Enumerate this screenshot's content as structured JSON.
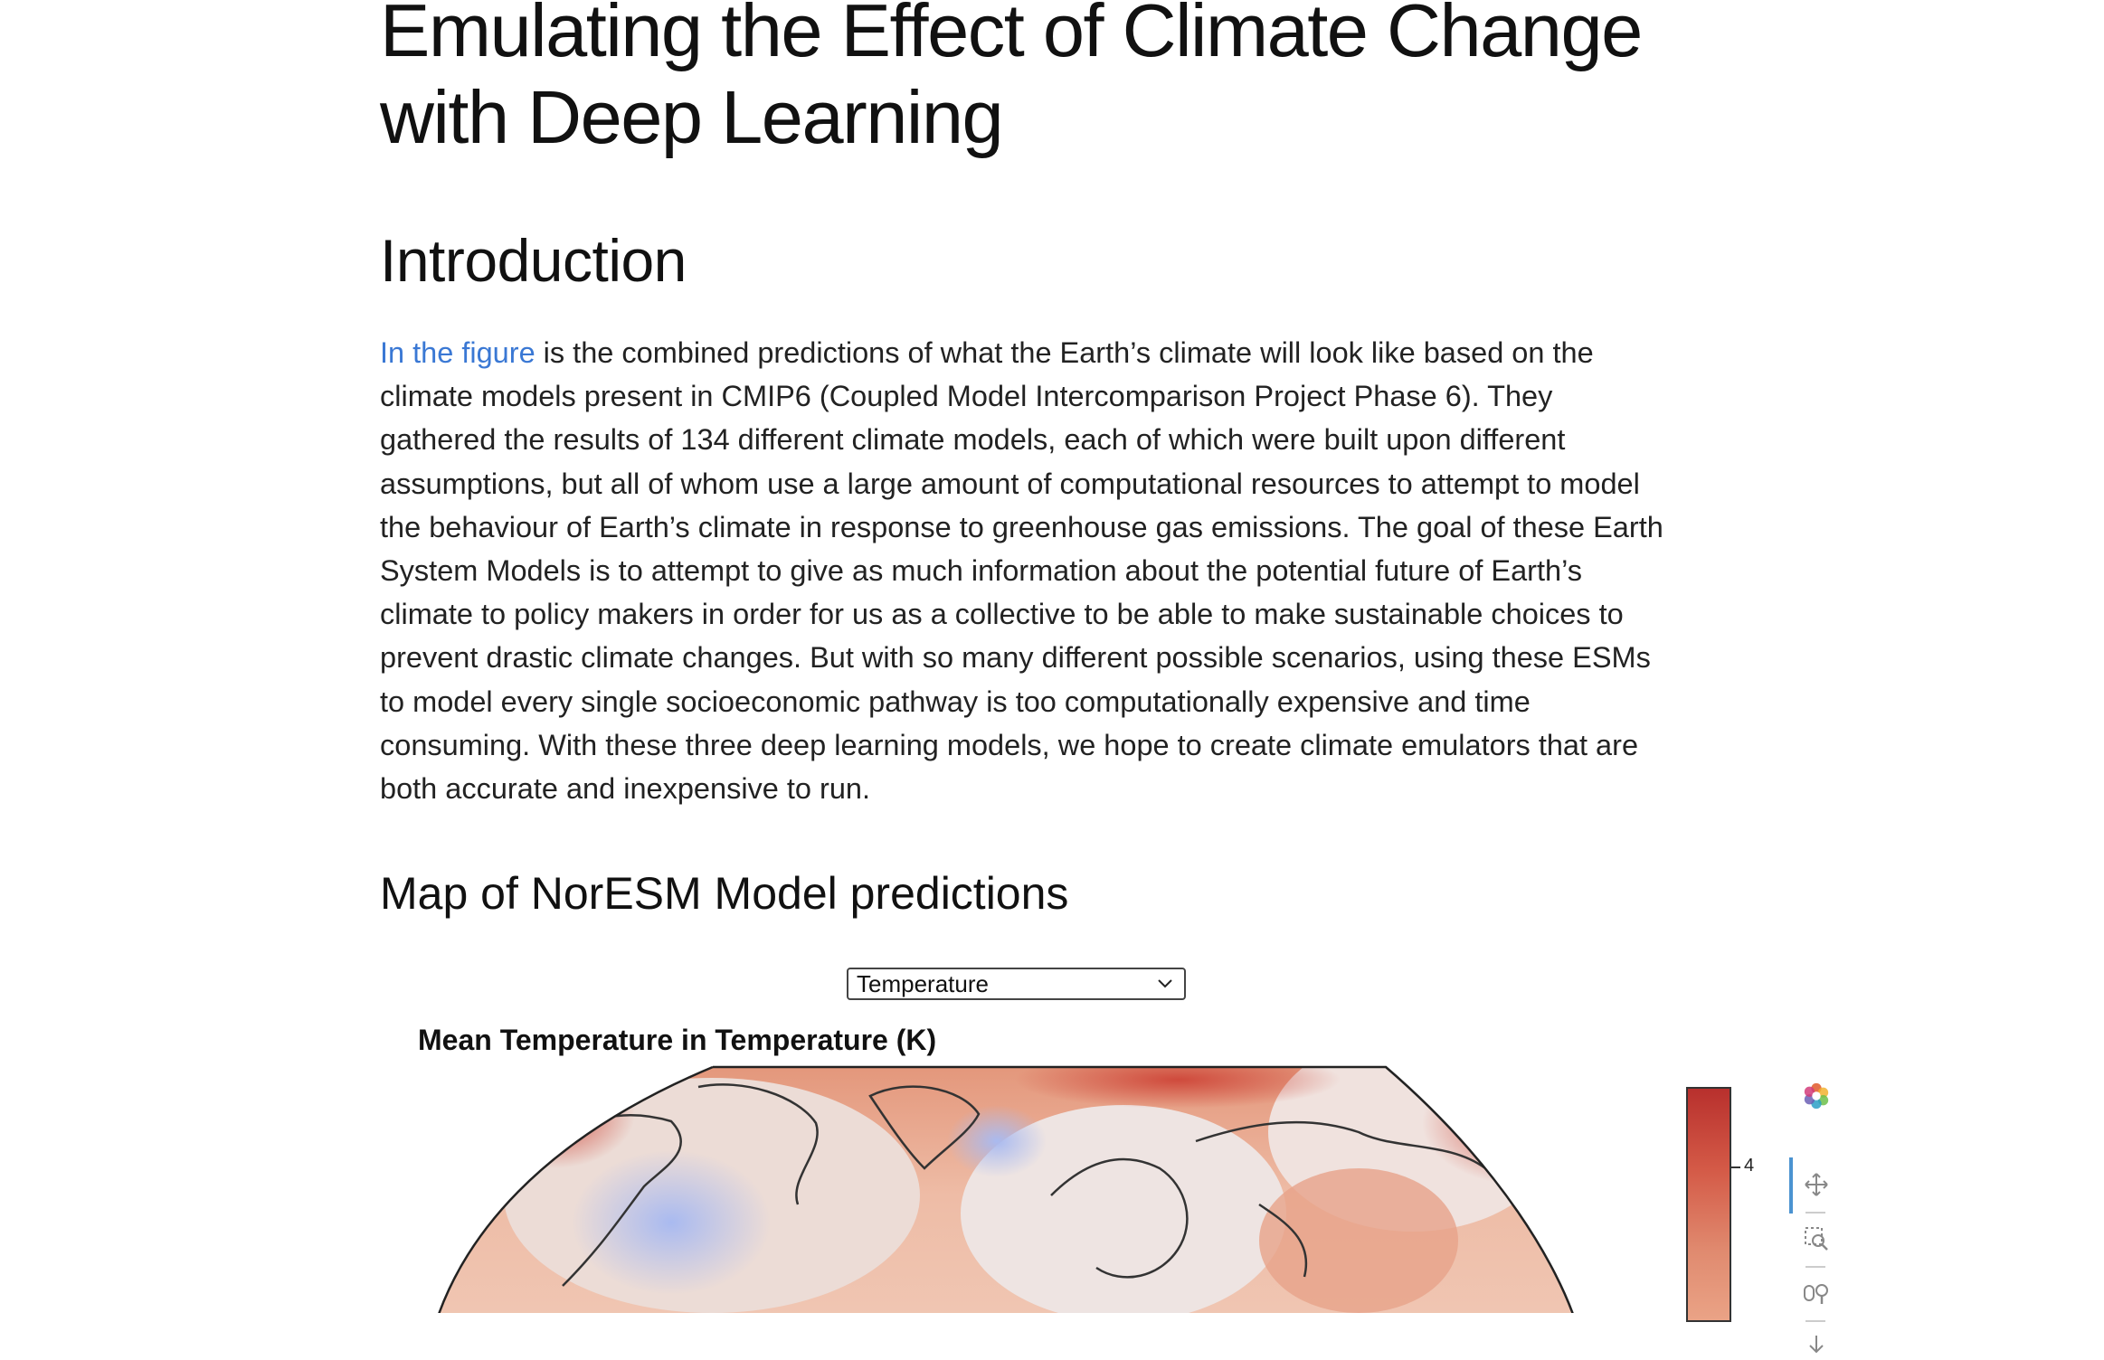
{
  "page": {
    "title": "Emulating the Effect of Climate Change with Deep Learning",
    "intro_heading": "Introduction",
    "intro_link": "In the figure",
    "intro_text": " is the combined predictions of what the Earth’s climate will look like based on the climate models present in CMIP6 (Coupled Model Intercomparison Project Phase 6). They gathered the results of 134 different climate models, each of which were built upon different assumptions, but all of whom use a large amount of computational resources to attempt to model the behaviour of Earth’s climate in response to greenhouse gas emissions. The goal of these Earth System Models is to attempt to give as much information about the potential future of Earth’s climate to policy makers in order for us as a collective to be able to make sustainable choices to prevent drastic climate changes. But with so many different possible scenarios, using these ESMs to model every single socioeconomic pathway is too computationally expensive and time consuming. With these three deep learning models, we hope to create climate emulators that are both accurate and inexpensive to run.",
    "map_heading": "Map of NorESM Model predictions"
  },
  "variable_select": {
    "value": "Temperature"
  },
  "plot": {
    "title": "Mean Temperature in Temperature (K)",
    "colorbar_tick": "4",
    "colors": {
      "warm_dark": "#b8302d",
      "warm": "#e08a6f",
      "cool": "#c9d3f0",
      "neutral": "#f2ece8"
    },
    "toolbar": [
      "bokeh-logo-icon",
      "pan-icon",
      "box-zoom-icon",
      "wheel-zoom-icon",
      "save-icon"
    ]
  }
}
